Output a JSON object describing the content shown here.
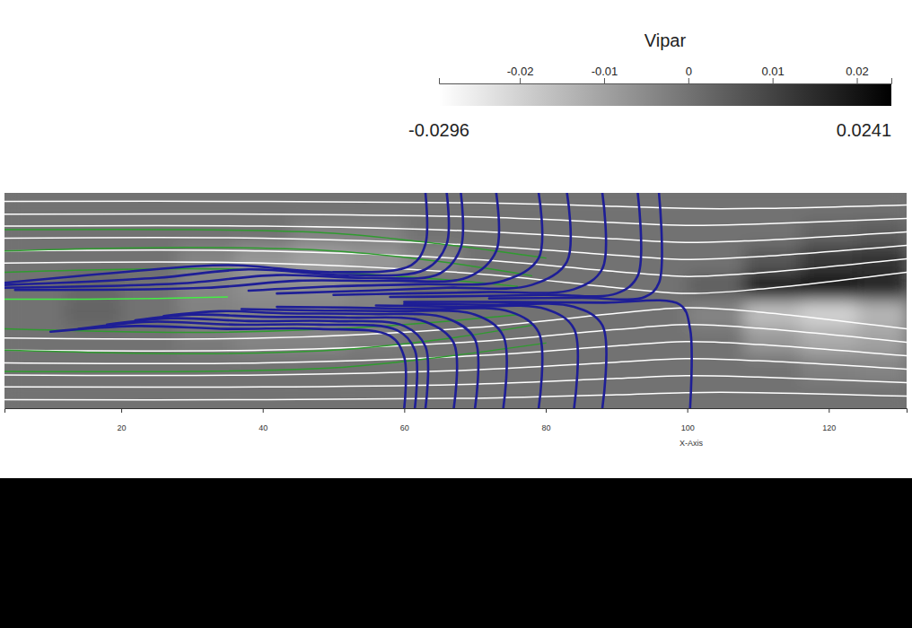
{
  "chart_data": {
    "type": "field",
    "xlabel": "X-Axis",
    "xlim": [
      3.5,
      131
    ],
    "ylim": [
      -15.2,
      15.2
    ],
    "xticks": [
      20,
      40,
      60,
      80,
      100,
      120
    ],
    "tick_labels": "x",
    "colorbar": {
      "title": "Vipar",
      "range": [
        -0.0296,
        0.0241
      ],
      "ticks": [
        -0.02,
        -0.01,
        0,
        0.01,
        0.02
      ]
    },
    "cells": {
      "x": [
        3.5,
        12,
        20,
        28,
        36,
        44,
        52,
        60,
        68,
        76,
        84,
        92,
        100,
        108,
        116,
        124,
        131
      ],
      "y": [
        15.2,
        11.4,
        7.6,
        3.8,
        0,
        -3.8,
        -7.6,
        -11.4,
        -15.2
      ],
      "values": [
        [
          0,
          0,
          0,
          0,
          0,
          0,
          0,
          0,
          0,
          0,
          0,
          0,
          0,
          0,
          0,
          0
        ],
        [
          0,
          0,
          0,
          0,
          0,
          -0.003,
          -0.003,
          0,
          0,
          0,
          0,
          0,
          0,
          0,
          0.003,
          0.005
        ],
        [
          0,
          0,
          0,
          -0.004,
          -0.008,
          -0.01,
          -0.008,
          -0.004,
          0,
          0,
          0,
          0,
          0,
          0.006,
          0.012,
          0.014
        ],
        [
          0,
          0.002,
          0,
          -0.004,
          -0.006,
          -0.006,
          -0.004,
          0,
          0,
          0,
          0,
          0,
          0.004,
          0.018,
          0.02,
          0.016
        ],
        [
          0,
          0.003,
          0,
          -0.003,
          -0.004,
          -0.004,
          -0.003,
          0,
          0,
          0,
          0,
          0,
          -0.004,
          -0.016,
          -0.02,
          -0.014
        ],
        [
          0,
          0,
          0,
          -0.002,
          -0.004,
          -0.004,
          -0.002,
          0,
          0,
          0,
          0,
          0,
          0,
          -0.008,
          -0.012,
          -0.01
        ],
        [
          0,
          0,
          0,
          0,
          0,
          0,
          0,
          0,
          0,
          0,
          0,
          0,
          0,
          0,
          -0.003,
          -0.004
        ],
        [
          0,
          0,
          0,
          0,
          0,
          0,
          0,
          0,
          0,
          0,
          0,
          0,
          0,
          0,
          0,
          0
        ]
      ]
    },
    "series": [
      {
        "color": "#ffffff",
        "x": [
          3.5,
          40,
          70,
          90,
          100,
          110,
          131
        ],
        "values": [
          14.0,
          14.0,
          13.8,
          13.3,
          13.0,
          13.0,
          13.5
        ]
      },
      {
        "color": "#ffffff",
        "x": [
          3.5,
          40,
          70,
          90,
          100,
          110,
          131
        ],
        "values": [
          12.2,
          12.2,
          11.8,
          11.0,
          10.6,
          10.8,
          11.6
        ]
      },
      {
        "color": "#ffffff",
        "x": [
          3.5,
          40,
          70,
          90,
          100,
          110,
          131
        ],
        "values": [
          10.5,
          10.5,
          9.8,
          8.7,
          8.2,
          8.5,
          9.7
        ]
      },
      {
        "color": "#ffffff",
        "x": [
          3.5,
          40,
          70,
          90,
          100,
          110,
          131
        ],
        "values": [
          8.8,
          8.8,
          7.8,
          6.4,
          5.8,
          6.2,
          7.8
        ]
      },
      {
        "color": "#ffffff",
        "x": [
          3.5,
          40,
          70,
          90,
          100,
          110,
          131
        ],
        "values": [
          7.0,
          7.0,
          5.8,
          4.1,
          3.4,
          3.9,
          5.9
        ]
      },
      {
        "color": "#ffffff",
        "x": [
          3.5,
          40,
          70,
          90,
          100,
          110,
          131
        ],
        "values": [
          5.3,
          5.3,
          3.8,
          1.8,
          1.0,
          1.6,
          4.0
        ]
      },
      {
        "color": "#ffffff",
        "x": [
          3.5,
          40,
          70,
          90,
          100,
          110,
          131
        ],
        "values": [
          -14.0,
          -14.0,
          -13.8,
          -13.3,
          -13.0,
          -13.0,
          -13.5
        ]
      },
      {
        "color": "#ffffff",
        "x": [
          3.5,
          40,
          70,
          90,
          100,
          110,
          131
        ],
        "values": [
          -12.2,
          -12.2,
          -11.8,
          -11.0,
          -10.6,
          -10.8,
          -11.6
        ]
      },
      {
        "color": "#ffffff",
        "x": [
          3.5,
          40,
          70,
          90,
          100,
          110,
          131
        ],
        "values": [
          -10.5,
          -10.5,
          -9.8,
          -8.7,
          -8.2,
          -8.5,
          -9.7
        ]
      },
      {
        "color": "#ffffff",
        "x": [
          3.5,
          40,
          70,
          90,
          100,
          110,
          131
        ],
        "values": [
          -8.8,
          -8.8,
          -7.8,
          -6.4,
          -5.8,
          -6.2,
          -7.8
        ]
      },
      {
        "color": "#ffffff",
        "x": [
          3.5,
          40,
          70,
          90,
          100,
          110,
          131
        ],
        "values": [
          -7.0,
          -7.0,
          -5.8,
          -4.1,
          -3.4,
          -3.9,
          -5.9
        ]
      },
      {
        "color": "#ffffff",
        "x": [
          3.5,
          40,
          70,
          90,
          100,
          110,
          131
        ],
        "values": [
          -5.3,
          -5.3,
          -3.8,
          -1.8,
          -1.0,
          -1.6,
          -4.0
        ]
      },
      {
        "color": "#2f9b2f",
        "x": [
          3.5,
          30,
          50,
          65,
          80
        ],
        "values": [
          10,
          10,
          9.5,
          8,
          6
        ]
      },
      {
        "color": "#2f9b2f",
        "x": [
          3.5,
          30,
          50,
          65,
          78
        ],
        "values": [
          7,
          7.5,
          7,
          5.5,
          3.5
        ]
      },
      {
        "color": "#2f9b2f",
        "x": [
          3.5,
          30,
          50,
          65,
          76
        ],
        "values": [
          4,
          4.5,
          4,
          3,
          2
        ]
      },
      {
        "color": "#2f9b2f",
        "x": [
          3.5,
          30,
          50,
          65,
          80
        ],
        "values": [
          -10,
          -10,
          -9.5,
          -8,
          -6
        ]
      },
      {
        "color": "#2f9b2f",
        "x": [
          3.5,
          30,
          50,
          65,
          78
        ],
        "values": [
          -7,
          -7.5,
          -7,
          -5.5,
          -3.5
        ]
      },
      {
        "color": "#2f9b2f",
        "x": [
          3.5,
          30,
          50,
          65,
          76
        ],
        "values": [
          -4,
          -4.5,
          -4,
          -3,
          -2
        ]
      },
      {
        "color": "#44ee44",
        "x": [
          3.5,
          15,
          25,
          35
        ],
        "values": [
          0.2,
          0.2,
          0.3,
          0.5
        ]
      },
      {
        "color": "#1e1e96",
        "x": [
          63,
          63,
          61,
          50,
          35,
          20,
          3.5
        ],
        "values": [
          15.2,
          8,
          5,
          4,
          5,
          4,
          2.5
        ]
      },
      {
        "color": "#1e1e96",
        "x": [
          66,
          66,
          63,
          52,
          38,
          25,
          3.5
        ],
        "values": [
          15.2,
          8,
          4.4,
          3.6,
          4.4,
          3.2,
          2.2
        ]
      },
      {
        "color": "#1e1e96",
        "x": [
          68,
          68,
          65,
          55,
          42,
          28,
          3.5
        ],
        "values": [
          15.2,
          7.5,
          3.8,
          3.2,
          3.6,
          2.4,
          1.8
        ]
      },
      {
        "color": "#1e1e96",
        "x": [
          73,
          73,
          69,
          58,
          45,
          32,
          5
        ],
        "values": [
          15.2,
          7,
          3.3,
          2.8,
          2.8,
          1.8,
          1.5
        ]
      },
      {
        "color": "#1e1e96",
        "x": [
          79,
          79,
          74,
          62,
          50,
          38
        ],
        "values": [
          15.2,
          6,
          2.8,
          2.3,
          2.0,
          1.4
        ]
      },
      {
        "color": "#1e1e96",
        "x": [
          83,
          83,
          78,
          66,
          55,
          42
        ],
        "values": [
          15.2,
          5.5,
          2.2,
          1.8,
          1.4,
          1.0
        ]
      },
      {
        "color": "#1e1e96",
        "x": [
          88,
          88,
          84,
          72,
          60,
          50
        ],
        "values": [
          15.2,
          4.5,
          1.6,
          1.2,
          1.0,
          0.8
        ]
      },
      {
        "color": "#1e1e96",
        "x": [
          93,
          93,
          90,
          80,
          68,
          58
        ],
        "values": [
          15.2,
          3.5,
          1.0,
          0.8,
          0.6,
          0.5
        ]
      },
      {
        "color": "#1e1e96",
        "x": [
          96,
          96,
          94,
          85,
          72
        ],
        "values": [
          15.2,
          2.5,
          0.5,
          0.4,
          0.3
        ]
      },
      {
        "color": "#1e1e96",
        "x": [
          60,
          60,
          58,
          48,
          35,
          22,
          10
        ],
        "values": [
          -15.2,
          -8,
          -5,
          -4,
          -4,
          -3.6,
          -4.4
        ]
      },
      {
        "color": "#1e1e96",
        "x": [
          61.5,
          61.5,
          59,
          48,
          36,
          24,
          14
        ],
        "values": [
          -15.2,
          -7,
          -4.2,
          -3.4,
          -3.4,
          -3,
          -4
        ]
      },
      {
        "color": "#1e1e96",
        "x": [
          63,
          63,
          60,
          50,
          38,
          27,
          18
        ],
        "values": [
          -15.2,
          -6.5,
          -3.6,
          -2.9,
          -2.9,
          -2.5,
          -3.4
        ]
      },
      {
        "color": "#1e1e96",
        "x": [
          67,
          67,
          63,
          52,
          40,
          30,
          22
        ],
        "values": [
          -15.2,
          -6,
          -3,
          -2.4,
          -2.3,
          -2,
          -2.8
        ]
      },
      {
        "color": "#1e1e96",
        "x": [
          70,
          70,
          66,
          55,
          43,
          34,
          26
        ],
        "values": [
          -15.2,
          -5.5,
          -2.5,
          -1.9,
          -1.8,
          -1.5,
          -2.2
        ]
      },
      {
        "color": "#1e1e96",
        "x": [
          74,
          74,
          70,
          58,
          47,
          37
        ],
        "values": [
          -15.2,
          -5,
          -2,
          -1.5,
          -1.4,
          -1.2
        ]
      },
      {
        "color": "#1e1e96",
        "x": [
          79,
          79,
          75,
          63,
          52,
          42
        ],
        "values": [
          -15.2,
          -4.5,
          -1.6,
          -1.2,
          -1,
          -0.9
        ]
      },
      {
        "color": "#1e1e96",
        "x": [
          84,
          84,
          80,
          68,
          56
        ],
        "values": [
          -15.2,
          -4,
          -1.2,
          -0.9,
          -0.7
        ]
      },
      {
        "color": "#1e1e96",
        "x": [
          88,
          88,
          84,
          72,
          60
        ],
        "values": [
          -15.2,
          -3.5,
          -0.9,
          -0.6,
          -0.5
        ]
      },
      {
        "color": "#1e1e96",
        "x": [
          100.4,
          100.4,
          99,
          88,
          75,
          60
        ],
        "values": [
          -15.2,
          -4,
          -0.6,
          -0.3,
          -0.2,
          -0.2
        ]
      }
    ]
  }
}
